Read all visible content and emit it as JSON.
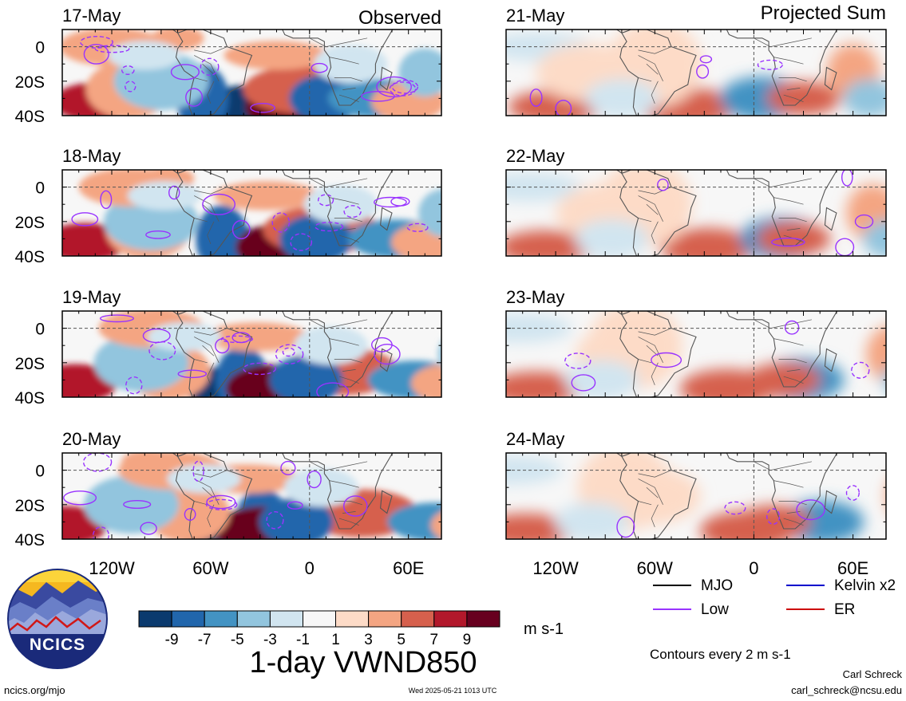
{
  "headers": {
    "left": "Observed",
    "right": "Projected Sum"
  },
  "panels": {
    "left": [
      {
        "date": "17-May"
      },
      {
        "date": "18-May"
      },
      {
        "date": "19-May"
      },
      {
        "date": "20-May"
      }
    ],
    "right": [
      {
        "date": "21-May"
      },
      {
        "date": "22-May"
      },
      {
        "date": "23-May"
      },
      {
        "date": "24-May"
      }
    ]
  },
  "lat_labels": [
    "0",
    "20S",
    "40S"
  ],
  "lon_labels": [
    "120W",
    "60W",
    "0",
    "60E"
  ],
  "map_extent": {
    "lon_min": -150,
    "lon_max": 80,
    "lat_min": -40,
    "lat_max": 10
  },
  "colorbar": {
    "tick_labels": [
      "-9",
      "-7",
      "-5",
      "-3",
      "-1",
      "1",
      "3",
      "5",
      "7",
      "9"
    ],
    "colors": [
      "#0b3a6e",
      "#2166ac",
      "#4393c3",
      "#92c5de",
      "#d1e5f0",
      "#f7f7f7",
      "#fddbc7",
      "#f4a582",
      "#d6604d",
      "#b2182b",
      "#67001f"
    ],
    "units": "m s-1"
  },
  "legend": [
    {
      "label": "MJO",
      "color": "#000000"
    },
    {
      "label": "Kelvin x2",
      "color": "#0000cc"
    },
    {
      "label": "Low",
      "color": "#9933ff"
    },
    {
      "label": "ER",
      "color": "#cc0000"
    }
  ],
  "contour_note": "Contours every 2 m s-1",
  "main_title": "1-day VWND850",
  "logo": {
    "text": "NCICS"
  },
  "footer": {
    "url": "ncics.org/mjo",
    "timestamp": "Wed 2025-05-21 1013 UTC",
    "author": "Carl Schreck",
    "email": "carl_schreck@ncsu.edu"
  }
}
